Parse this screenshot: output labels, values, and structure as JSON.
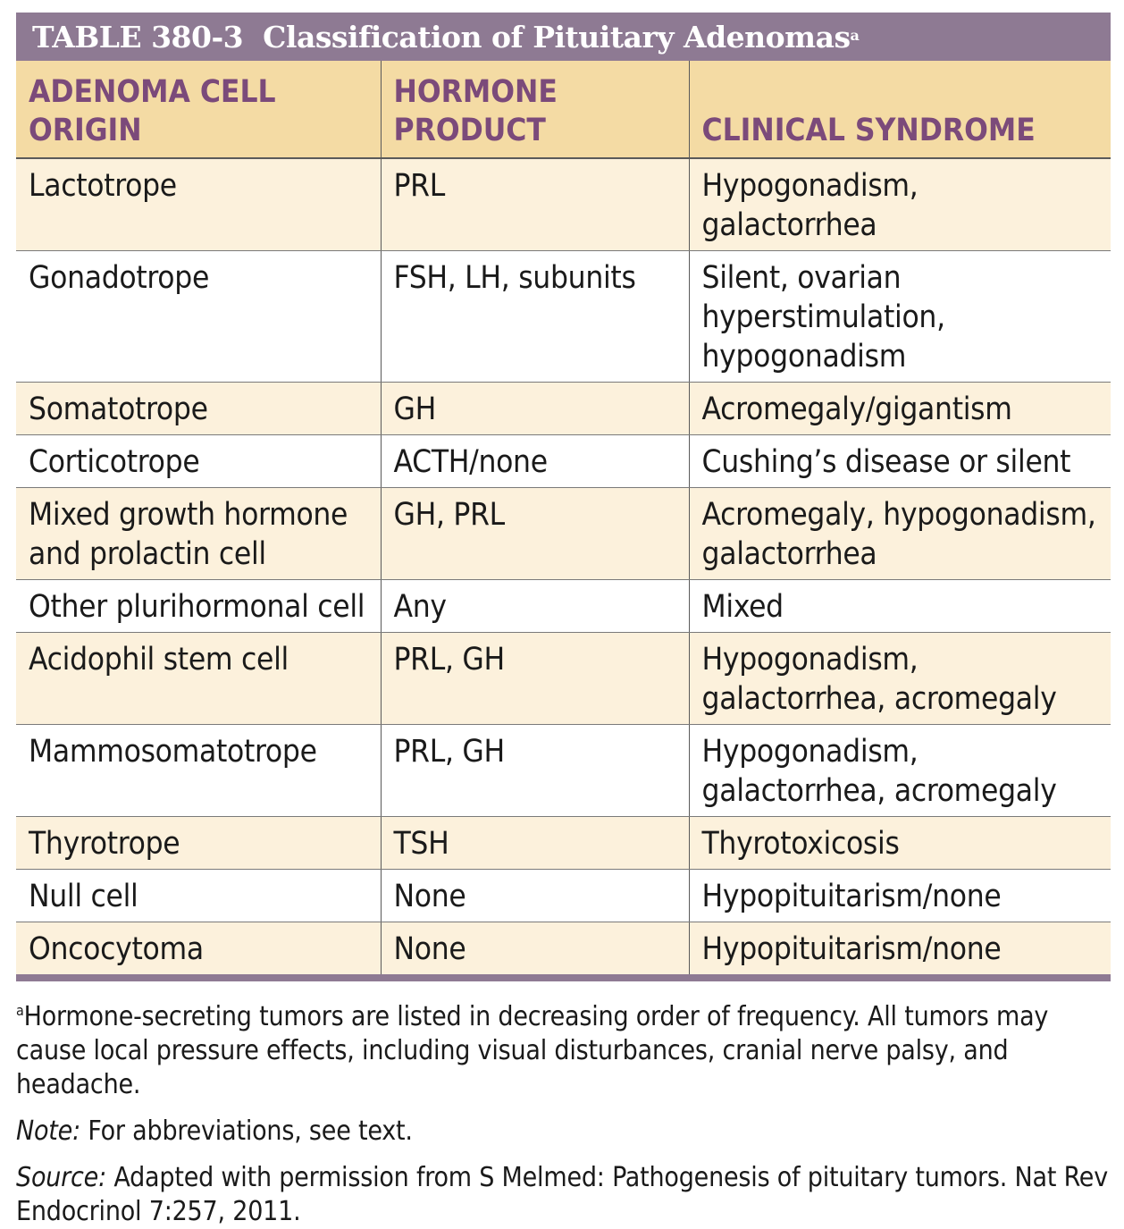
{
  "title": {
    "number": "TABLE 380-3",
    "text": "Classification of Pituitary Adenomas",
    "sup": "a"
  },
  "table": {
    "headers": [
      [
        "ADENOMA CELL ORIGIN"
      ],
      [
        "HORMONE",
        "PRODUCT"
      ],
      [
        "CLINICAL SYNDROME"
      ]
    ],
    "rows": [
      [
        "Lactotrope",
        "PRL",
        "Hypogonadism, galactorrhea"
      ],
      [
        "Gonadotrope",
        "FSH, LH, subunits",
        "Silent, ovarian hyperstimulation, hypogonadism"
      ],
      [
        "Somatotrope",
        "GH",
        "Acromegaly/gigantism"
      ],
      [
        "Corticotrope",
        "ACTH/none",
        "Cushing’s disease or silent"
      ],
      [
        "Mixed growth hormone and prolactin cell",
        "GH, PRL",
        "Acromegaly, hypogonadism, galactorrhea"
      ],
      [
        "Other plurihormonal cell",
        "Any",
        "Mixed"
      ],
      [
        "Acidophil stem cell",
        "PRL, GH",
        "Hypogonadism, galactorrhea, acromegaly"
      ],
      [
        "Mammosomatotrope",
        "PRL, GH",
        "Hypogonadism, galactorrhea, acromegaly"
      ],
      [
        "Thyrotrope",
        "TSH",
        "Thyrotoxicosis"
      ],
      [
        "Null cell",
        "None",
        "Hypopituitarism/none"
      ],
      [
        "Oncocytoma",
        "None",
        "Hypopituitarism/none"
      ]
    ]
  },
  "footnotes": {
    "a_marker": "a",
    "a_text": "Hormone-secreting tumors are listed in decreasing order of frequency. All tumors may cause local pressure effects, including visual disturbances, cranial nerve palsy, and headache.",
    "note_label": "Note:",
    "note_text": " For abbreviations, see text.",
    "source_label": "Source:",
    "source_text": " Adapted with permission from S Melmed: Pathogenesis of pituitary tumors. Nat Rev Endocrinol 7:257, 2011."
  },
  "colors": {
    "title_bar": "#8e7a93",
    "header_bg": "#f4dba4",
    "header_text": "#7b4a7a",
    "stripe": "#fcf1dc"
  }
}
